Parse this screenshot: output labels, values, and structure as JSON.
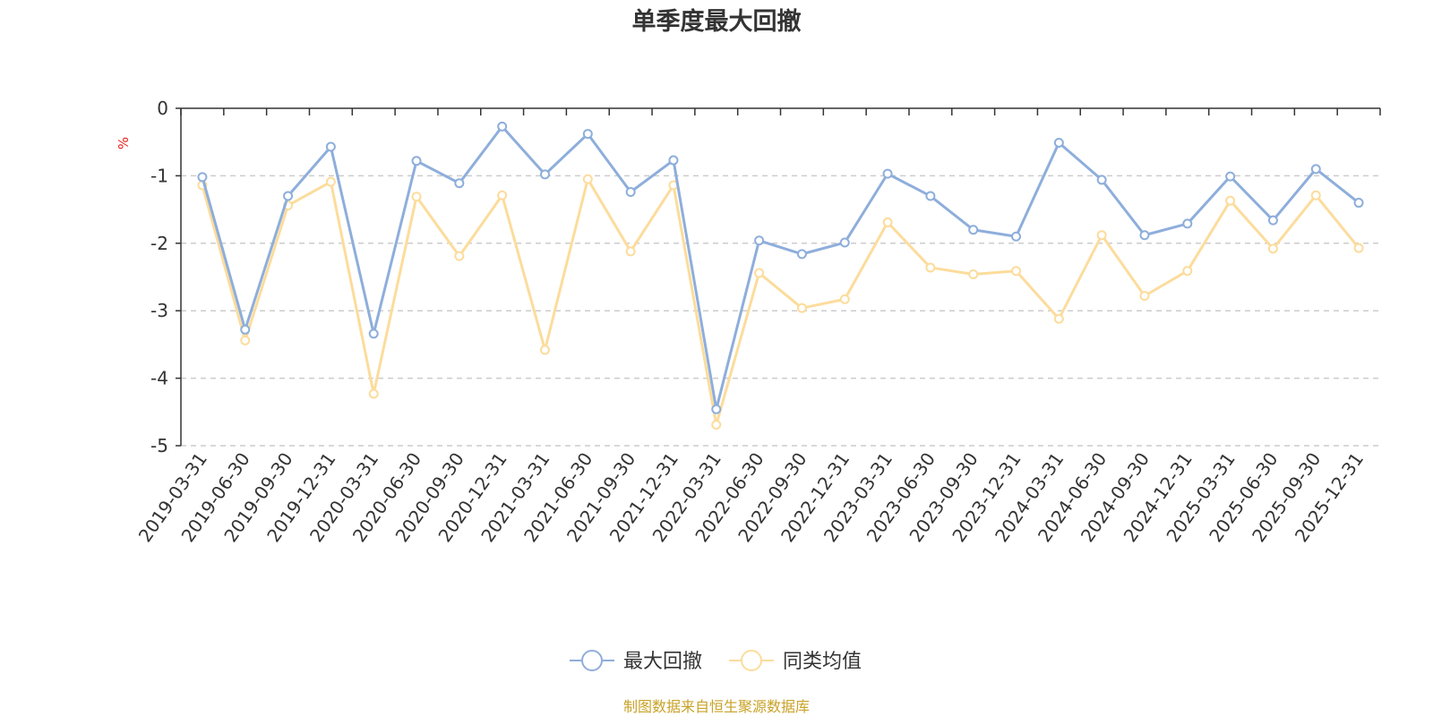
{
  "chart_data": {
    "type": "line",
    "title": "单季度最大回撤",
    "ylabel": "%",
    "ylim": [
      -5,
      0
    ],
    "yticks": [
      0,
      -1,
      -2,
      -3,
      -4,
      -5
    ],
    "grid": true,
    "legend_position": "bottom",
    "categories": [
      "2019-03-31",
      "2019-06-30",
      "2019-09-30",
      "2019-12-31",
      "2020-03-31",
      "2020-06-30",
      "2020-09-30",
      "2020-12-31",
      "2021-03-31",
      "2021-06-30",
      "2021-09-30",
      "2021-12-31",
      "2022-03-31",
      "2022-06-30",
      "2022-09-30",
      "2022-12-31",
      "2023-03-31",
      "2023-06-30",
      "2023-09-30",
      "2023-12-31",
      "2024-03-31",
      "2024-06-30",
      "2024-09-30",
      "2024-12-31",
      "2025-03-31",
      "2025-06-30",
      "2025-09-30",
      "2025-12-31"
    ],
    "series": [
      {
        "name": "最大回撤",
        "color": "#8eaedb",
        "values": [
          -1.02,
          -3.28,
          -1.3,
          -0.57,
          -3.34,
          -0.78,
          -1.11,
          -0.27,
          -0.98,
          -0.38,
          -1.24,
          -0.77,
          -4.46,
          -1.96,
          -2.16,
          -1.99,
          -0.97,
          -1.3,
          -1.8,
          -1.9,
          -0.51,
          -1.06,
          -1.88,
          -1.71,
          -1.01,
          -1.66,
          -0.9,
          -1.4
        ]
      },
      {
        "name": "同类均值",
        "color": "#fcdc9c",
        "values": [
          -1.14,
          -3.44,
          -1.44,
          -1.09,
          -4.23,
          -1.31,
          -2.19,
          -1.29,
          -3.58,
          -1.05,
          -2.12,
          -1.14,
          -4.69,
          -2.44,
          -2.96,
          -2.83,
          -1.69,
          -2.36,
          -2.46,
          -2.41,
          -3.12,
          -1.88,
          -2.78,
          -2.41,
          -1.37,
          -2.08,
          -1.29,
          -2.07
        ]
      }
    ]
  },
  "source_text": "制图数据来自恒生聚源数据库",
  "colors": {
    "axis": "#333333",
    "grid": "#cccccc",
    "ylabel": "#e8211e",
    "source": "#c9a227"
  }
}
